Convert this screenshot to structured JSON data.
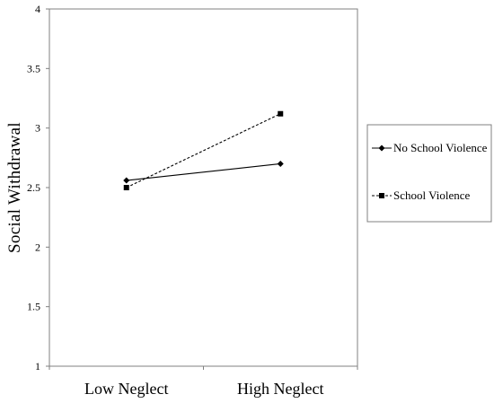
{
  "chart_data": {
    "type": "line",
    "title": "",
    "xlabel": "",
    "ylabel": "Social Withdrawal",
    "categories": [
      "Low Neglect",
      "High Neglect"
    ],
    "ylim": [
      1,
      4
    ],
    "yticks": [
      "1",
      "1.5",
      "2",
      "2.5",
      "3",
      "3.5",
      "4"
    ],
    "grid": false,
    "legend_position": "right",
    "series": [
      {
        "name": "No School Violence",
        "values": [
          2.56,
          2.7
        ],
        "line": "solid",
        "marker": "diamond",
        "color": "#000000"
      },
      {
        "name": "School Violence",
        "values": [
          2.5,
          3.12
        ],
        "line": "dashed",
        "marker": "square",
        "color": "#000000"
      }
    ]
  }
}
